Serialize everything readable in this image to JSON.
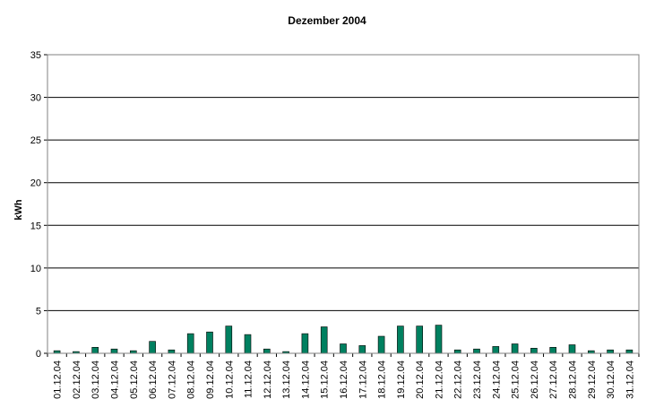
{
  "chart_data": {
    "type": "bar",
    "title": "Dezember 2004",
    "xlabel": "",
    "ylabel": "kWh",
    "ylim": [
      0,
      35
    ],
    "yticks": [
      "0",
      "5",
      "10",
      "15",
      "20",
      "25",
      "30",
      "35"
    ],
    "grid": true,
    "legend": "none",
    "bar_color": "#008060",
    "categories": [
      "01.12.04",
      "02.12.04",
      "03.12.04",
      "04.12.04",
      "05.12.04",
      "06.12.04",
      "07.12.04",
      "08.12.04",
      "09.12.04",
      "10.12.04",
      "11.12.04",
      "12.12.04",
      "13.12.04",
      "14.12.04",
      "15.12.04",
      "16.12.04",
      "17.12.04",
      "18.12.04",
      "19.12.04",
      "20.12.04",
      "21.12.04",
      "22.12.04",
      "23.12.04",
      "24.12.04",
      "25.12.04",
      "26.12.04",
      "27.12.04",
      "28.12.04",
      "29.12.04",
      "30.12.04",
      "31.12.04"
    ],
    "values": [
      0.3,
      0.2,
      0.7,
      0.5,
      0.3,
      1.4,
      0.4,
      2.3,
      2.5,
      3.2,
      2.2,
      0.5,
      0.2,
      2.3,
      3.1,
      1.1,
      0.9,
      2.0,
      3.2,
      3.2,
      3.3,
      0.4,
      0.5,
      0.8,
      1.1,
      0.6,
      0.7,
      1.0,
      0.3,
      0.4,
      0.4
    ]
  }
}
